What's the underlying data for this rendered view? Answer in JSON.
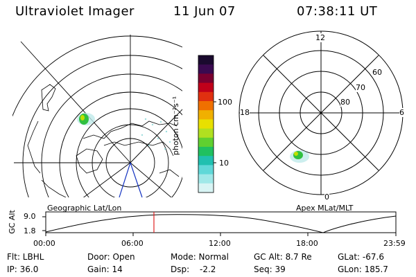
{
  "header": {
    "instrument": "Ultraviolet Imager",
    "date": "11 Jun 07",
    "time": "07:38:11 UT"
  },
  "left_panel": {
    "caption": "Geographic Lat/Lon"
  },
  "right_panel": {
    "caption": "Apex MLat/MLT",
    "mlt_labels": {
      "top": "12",
      "right": "6",
      "bottom": "0",
      "left": "18"
    },
    "lat_labels": [
      "60",
      "70",
      "80"
    ]
  },
  "colorbar": {
    "unit": "photon cm⁻²s⁻¹",
    "ticks": [
      "100",
      "10"
    ],
    "colors": [
      "#1a0a2e",
      "#3a0a50",
      "#7a0030",
      "#c0001a",
      "#e03010",
      "#f07000",
      "#f0b000",
      "#e8e000",
      "#b0e020",
      "#60d030",
      "#20c060",
      "#20c0b0",
      "#60d8d8",
      "#a0e8e8",
      "#d8f4f4"
    ]
  },
  "altitude_plot": {
    "ylabel": "GC Alt",
    "yticks": [
      "9.0",
      "1.8"
    ],
    "xticks": [
      "00:00",
      "06:00",
      "12:00",
      "18:00",
      "23:59"
    ],
    "marker_time": "07:38"
  },
  "info": {
    "flt": "Flt: LBHL",
    "ip": "IP: 36.0",
    "door": "Door: Open",
    "gain": "Gain: 14",
    "mode": "Mode: Normal",
    "dsp": "Dsp:",
    "dsp_value": "-2.2",
    "gc_alt": "GC Alt: 8.7 Re",
    "seq": "Seq: 39",
    "glat": "GLat: -67.6",
    "glon": "GLon: 185.7"
  }
}
